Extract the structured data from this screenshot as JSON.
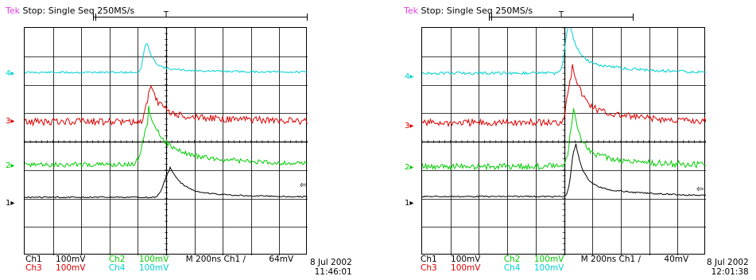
{
  "colors": {
    "ch1": "#000000",
    "ch2": "#00cc00",
    "ch3": "#dd0000",
    "ch4": "#00d0d0",
    "brand": "#e040e0"
  },
  "screens": [
    {
      "brand": "Tek",
      "status": "Stop: Single Seq  250MS/s",
      "trigger_marker": "T",
      "channel_markers": [
        "4",
        "3",
        "2",
        "1"
      ],
      "trigger_level_icon": "arrow-left-icon",
      "readout_row1": {
        "ch1_label": "Ch1",
        "ch1_scale": "100mV",
        "ch2_label": "Ch2",
        "ch2_scale": "100mV",
        "time": "M  200ns  Ch1  ∕",
        "trigger_level": "64mV"
      },
      "readout_row2": {
        "ch3_label": "Ch3",
        "ch3_scale": "100mV",
        "ch4_label": "Ch4",
        "ch4_scale": "100mV"
      },
      "date": "8 Jul 2002",
      "time_of_day": "11:46:01"
    },
    {
      "brand": "Tek",
      "status": "Stop: Single Seq  250MS/s",
      "trigger_marker": "T",
      "channel_markers": [
        "4",
        "3",
        "2",
        "1"
      ],
      "trigger_level_icon": "arrow-left-icon",
      "readout_row1": {
        "ch1_label": "Ch1",
        "ch1_scale": "100mV",
        "ch2_label": "Ch2",
        "ch2_scale": "100mV",
        "time": "M  200ns  Ch1  ∕",
        "trigger_level": "40mV"
      },
      "readout_row2": {
        "ch3_label": "Ch3",
        "ch3_scale": "100mV",
        "ch4_label": "Ch4",
        "ch4_scale": "100mV"
      },
      "date": "8 Jul 2002",
      "time_of_day": "12:01:38"
    }
  ]
}
